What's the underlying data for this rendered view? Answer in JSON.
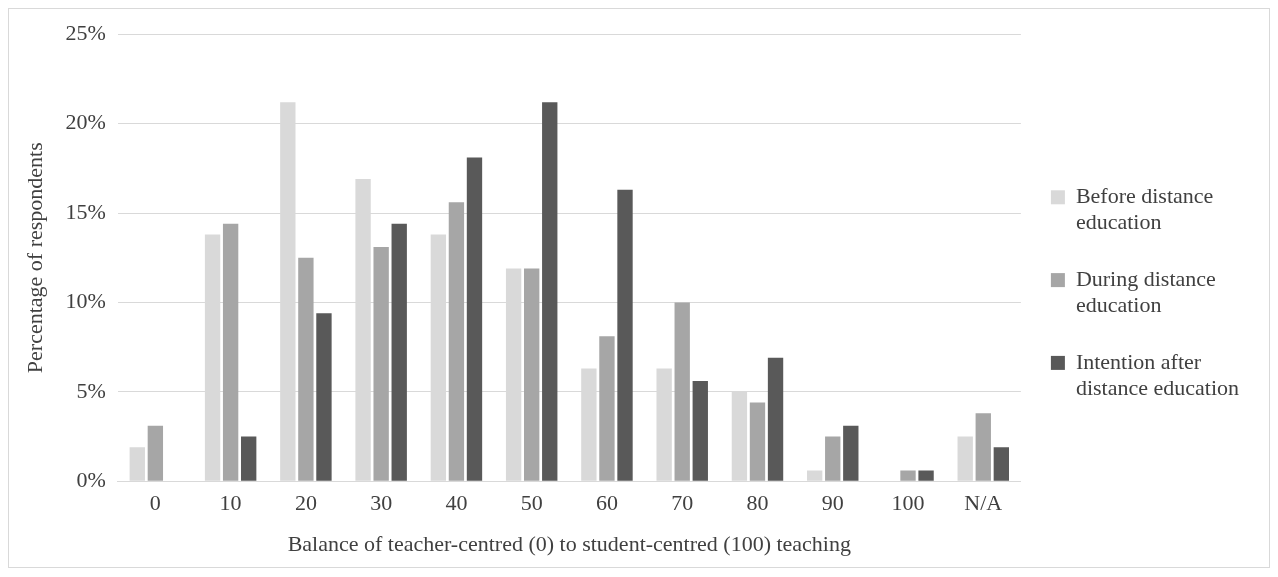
{
  "chart_data": {
    "type": "bar",
    "xlabel": "Balance of teacher-centred (0) to student-centred (100) teaching",
    "ylabel": "Percentage of respondents",
    "categories": [
      "0",
      "10",
      "20",
      "30",
      "40",
      "50",
      "60",
      "70",
      "80",
      "90",
      "100",
      "N/A"
    ],
    "series": [
      {
        "name": "Before distance education",
        "color": "#d9d9d9",
        "values": [
          1.9,
          13.8,
          21.2,
          16.9,
          13.8,
          11.9,
          6.3,
          6.3,
          5.0,
          0.6,
          0,
          2.5
        ]
      },
      {
        "name": "During distance education",
        "color": "#a6a6a6",
        "values": [
          3.1,
          14.4,
          12.5,
          13.1,
          15.6,
          11.9,
          8.1,
          10.0,
          4.4,
          2.5,
          0.6,
          3.8
        ]
      },
      {
        "name": "Intention after distance education",
        "color": "#595959",
        "values": [
          0,
          2.5,
          9.4,
          14.4,
          18.1,
          21.2,
          16.3,
          5.6,
          6.9,
          3.1,
          0.6,
          1.9
        ]
      }
    ],
    "ylim": [
      0,
      25
    ],
    "yticks": [
      {
        "value": 0,
        "label": "0%"
      },
      {
        "value": 5,
        "label": "5%"
      },
      {
        "value": 10,
        "label": "10%"
      },
      {
        "value": 15,
        "label": "15%"
      },
      {
        "value": 20,
        "label": "20%"
      },
      {
        "value": 25,
        "label": "25%"
      }
    ],
    "grid": "y",
    "legend": "right"
  }
}
